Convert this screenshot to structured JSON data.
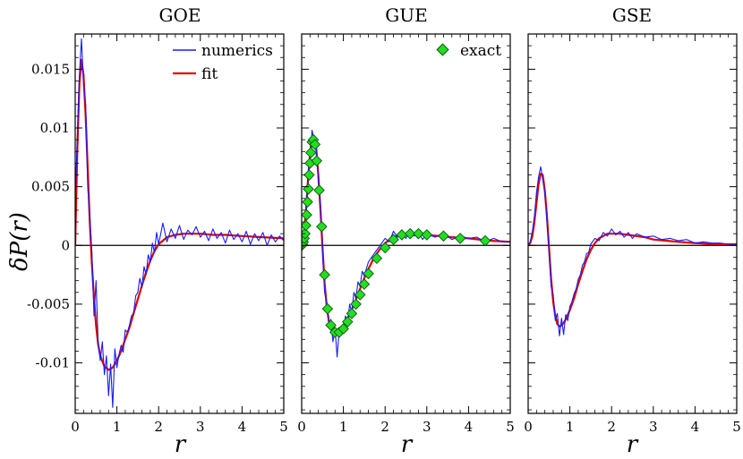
{
  "ylabel": "δP(r)",
  "colors": {
    "numerics": "#1a1aff",
    "fit": "#e00000",
    "exact_fill": "#22dd22",
    "exact_stroke": "#0a5a0a",
    "zero_line": "#000000"
  },
  "legend": {
    "numerics": "numerics",
    "fit": "fit",
    "exact": "exact"
  },
  "chart_data": [
    {
      "type": "line",
      "title": "GOE",
      "xlabel": "r",
      "xlim": [
        0,
        5
      ],
      "ylim": [
        -0.0143,
        0.018
      ],
      "xticks": [
        0,
        1,
        2,
        3,
        4,
        5
      ],
      "xtick_labels": [
        "0",
        "1",
        "2",
        "3",
        "4",
        "5"
      ],
      "yticks": [
        -0.01,
        -0.005,
        0,
        0.005,
        0.01,
        0.015
      ],
      "ytick_labels": [
        "-0.01",
        "-0.005",
        "0",
        "0.005",
        "0.01",
        "0.015"
      ],
      "series": [
        {
          "name": "fit",
          "x": [
            0,
            0.05,
            0.1,
            0.15,
            0.2,
            0.25,
            0.3,
            0.35,
            0.4,
            0.45,
            0.5,
            0.55,
            0.6,
            0.7,
            0.8,
            0.9,
            1.0,
            1.1,
            1.2,
            1.3,
            1.4,
            1.5,
            1.6,
            1.7,
            1.8,
            1.9,
            2.0,
            2.2,
            2.4,
            2.6,
            2.8,
            3.0,
            3.3,
            3.6,
            4.0,
            4.5,
            5.0
          ],
          "y": [
            0,
            0.008,
            0.0138,
            0.0158,
            0.0145,
            0.011,
            0.0065,
            0.002,
            -0.0015,
            -0.0045,
            -0.0068,
            -0.0084,
            -0.0094,
            -0.0103,
            -0.0106,
            -0.0104,
            -0.0098,
            -0.009,
            -0.008,
            -0.007,
            -0.0058,
            -0.0046,
            -0.0034,
            -0.0023,
            -0.0013,
            -0.0005,
            0.0001,
            0.0007,
            0.0009,
            0.001,
            0.001,
            0.001,
            0.0009,
            0.0009,
            0.0008,
            0.0007,
            0.0006
          ]
        },
        {
          "name": "numerics",
          "x": [
            0,
            0.05,
            0.1,
            0.15,
            0.2,
            0.25,
            0.3,
            0.35,
            0.4,
            0.45,
            0.5,
            0.55,
            0.6,
            0.65,
            0.7,
            0.75,
            0.8,
            0.85,
            0.9,
            0.95,
            1.0,
            1.05,
            1.1,
            1.15,
            1.2,
            1.25,
            1.3,
            1.35,
            1.4,
            1.45,
            1.5,
            1.55,
            1.6,
            1.65,
            1.7,
            1.75,
            1.8,
            1.85,
            1.9,
            1.95,
            2.0,
            2.1,
            2.2,
            2.3,
            2.4,
            2.5,
            2.6,
            2.7,
            2.8,
            2.9,
            3.0,
            3.1,
            3.2,
            3.3,
            3.4,
            3.5,
            3.6,
            3.7,
            3.8,
            3.9,
            4.0,
            4.1,
            4.2,
            4.3,
            4.4,
            4.5,
            4.6,
            4.7,
            4.8,
            4.9,
            5.0
          ],
          "y": [
            0.004,
            0.009,
            0.0145,
            0.0176,
            0.0138,
            0.012,
            0.005,
            0.0025,
            -0.0005,
            -0.006,
            -0.003,
            -0.0082,
            -0.0098,
            -0.0082,
            -0.011,
            -0.0094,
            -0.0128,
            -0.0101,
            -0.0138,
            -0.0088,
            -0.0104,
            -0.0093,
            -0.0085,
            -0.0091,
            -0.0072,
            -0.0074,
            -0.0068,
            -0.006,
            -0.0058,
            -0.0043,
            -0.004,
            -0.0028,
            -0.0036,
            -0.0018,
            -0.0025,
            -0.0008,
            -0.0014,
            0.0002,
            -0.0006,
            0.0011,
            0.0001,
            0.0019,
            0.0003,
            0.0014,
            0.0006,
            0.0017,
            0.0005,
            0.0013,
            0.0009,
            0.0016,
            0.0007,
            0.0012,
            0.0004,
            0.0014,
            0.0006,
            0.0011,
            0.0002,
            0.0013,
            0.0005,
            0.001,
            0.0003,
            0.0012,
            0.0001,
            0.001,
            0.0004,
            0.0011,
            0.0,
            0.0009,
            0.0003,
            0.0008,
            0.0004
          ]
        }
      ]
    },
    {
      "type": "line",
      "title": "GUE",
      "xlabel": "r",
      "xlim": [
        0,
        5
      ],
      "ylim": [
        -0.0143,
        0.018
      ],
      "xticks": [
        0,
        1,
        2,
        3,
        4,
        5
      ],
      "xtick_labels": [
        "0",
        "1",
        "2",
        "3",
        "4",
        "5"
      ],
      "series": [
        {
          "name": "fit",
          "x": [
            0,
            0.05,
            0.1,
            0.15,
            0.2,
            0.25,
            0.3,
            0.35,
            0.4,
            0.45,
            0.5,
            0.55,
            0.6,
            0.65,
            0.7,
            0.75,
            0.8,
            0.85,
            0.9,
            1.0,
            1.1,
            1.2,
            1.3,
            1.4,
            1.5,
            1.6,
            1.7,
            1.8,
            1.9,
            2.0,
            2.2,
            2.4,
            2.6,
            2.8,
            3.0,
            3.3,
            3.6,
            4.0,
            4.5,
            5.0
          ],
          "y": [
            0,
            0.0008,
            0.0028,
            0.0055,
            0.0078,
            0.0092,
            0.0093,
            0.0082,
            0.006,
            0.003,
            -0.0002,
            -0.0032,
            -0.0052,
            -0.0064,
            -0.007,
            -0.0073,
            -0.0074,
            -0.0074,
            -0.0073,
            -0.0068,
            -0.0062,
            -0.0055,
            -0.0046,
            -0.0037,
            -0.0028,
            -0.002,
            -0.0013,
            -0.0007,
            -0.0002,
            0.0002,
            0.0007,
            0.0009,
            0.001,
            0.001,
            0.0009,
            0.0008,
            0.0007,
            0.0006,
            0.0004,
            0.0003
          ]
        },
        {
          "name": "numerics",
          "x": [
            0,
            0.05,
            0.1,
            0.15,
            0.2,
            0.25,
            0.3,
            0.35,
            0.4,
            0.45,
            0.5,
            0.55,
            0.6,
            0.65,
            0.7,
            0.75,
            0.8,
            0.85,
            0.9,
            0.95,
            1.0,
            1.05,
            1.1,
            1.15,
            1.2,
            1.25,
            1.3,
            1.35,
            1.4,
            1.45,
            1.5,
            1.6,
            1.7,
            1.8,
            1.9,
            2.0,
            2.1,
            2.2,
            2.3,
            2.4,
            2.5,
            2.6,
            2.7,
            2.8,
            2.9,
            3.0,
            3.2,
            3.4,
            3.6,
            3.8,
            4.0,
            4.2,
            4.4,
            4.6,
            4.8,
            5.0
          ],
          "y": [
            0,
            0.001,
            0.0022,
            0.006,
            0.0075,
            0.0098,
            0.0089,
            0.0085,
            0.0055,
            0.0036,
            -0.0005,
            -0.004,
            -0.0048,
            -0.0068,
            -0.0063,
            -0.0082,
            -0.0071,
            -0.0095,
            -0.0072,
            -0.0069,
            -0.0075,
            -0.006,
            -0.0066,
            -0.005,
            -0.0057,
            -0.004,
            -0.0045,
            -0.0031,
            -0.0035,
            -0.0022,
            -0.0026,
            -0.0014,
            -0.0009,
            -0.0004,
            0.0001,
            0.0006,
            0.0003,
            0.0012,
            0.0007,
            0.0011,
            0.0006,
            0.0013,
            0.0008,
            0.0011,
            0.0005,
            0.001,
            0.0007,
            0.0011,
            0.0005,
            0.0008,
            0.0006,
            0.0007,
            0.0003,
            0.0006,
            0.0003,
            0.0003
          ]
        },
        {
          "name": "exact",
          "type": "scatter",
          "x": [
            0.0,
            0.02,
            0.04,
            0.06,
            0.08,
            0.1,
            0.12,
            0.14,
            0.16,
            0.18,
            0.2,
            0.22,
            0.25,
            0.28,
            0.32,
            0.36,
            0.42,
            0.48,
            0.55,
            0.62,
            0.7,
            0.8,
            0.9,
            1.0,
            1.1,
            1.2,
            1.3,
            1.4,
            1.5,
            1.6,
            1.8,
            2.0,
            2.2,
            2.4,
            2.6,
            2.8,
            3.0,
            3.4,
            3.8,
            4.4
          ],
          "y": [
            0.0,
            0.0001,
            0.0003,
            0.0006,
            0.001,
            0.0017,
            0.0026,
            0.0037,
            0.0048,
            0.006,
            0.007,
            0.0079,
            0.0088,
            0.009,
            0.0086,
            0.0072,
            0.0047,
            0.0016,
            -0.0025,
            -0.0054,
            -0.0068,
            -0.0074,
            -0.0074,
            -0.0071,
            -0.0065,
            -0.0058,
            -0.005,
            -0.0042,
            -0.0033,
            -0.0024,
            -0.0011,
            -0.0002,
            0.0005,
            0.0009,
            0.001,
            0.001,
            0.0009,
            0.0008,
            0.0006,
            0.0004
          ]
        }
      ]
    },
    {
      "type": "line",
      "title": "GSE",
      "xlabel": "r",
      "xlim": [
        0,
        5
      ],
      "ylim": [
        -0.0143,
        0.018
      ],
      "xticks": [
        0,
        1,
        2,
        3,
        4,
        5
      ],
      "xtick_labels": [
        "0",
        "1",
        "2",
        "3",
        "4",
        "5"
      ],
      "series": [
        {
          "name": "fit",
          "x": [
            0,
            0.05,
            0.1,
            0.15,
            0.2,
            0.25,
            0.3,
            0.35,
            0.4,
            0.45,
            0.5,
            0.55,
            0.6,
            0.65,
            0.7,
            0.75,
            0.8,
            0.85,
            0.9,
            1.0,
            1.1,
            1.2,
            1.3,
            1.4,
            1.5,
            1.6,
            1.7,
            1.8,
            1.9,
            2.0,
            2.2,
            2.4,
            2.6,
            2.8,
            3.0,
            3.3,
            3.6,
            4.0,
            4.5,
            5.0
          ],
          "y": [
            0,
            0.0002,
            0.0008,
            0.002,
            0.0036,
            0.0052,
            0.0061,
            0.006,
            0.0047,
            0.0025,
            -0.0002,
            -0.0028,
            -0.0048,
            -0.006,
            -0.0067,
            -0.0069,
            -0.0068,
            -0.0066,
            -0.0063,
            -0.0055,
            -0.0045,
            -0.0033,
            -0.0022,
            -0.0012,
            -0.0004,
            0.0002,
            0.0006,
            0.0008,
            0.001,
            0.001,
            0.001,
            0.0009,
            0.0008,
            0.0007,
            0.0005,
            0.0004,
            0.0003,
            0.0002,
            0.0001,
            0.0001
          ]
        },
        {
          "name": "numerics",
          "x": [
            0,
            0.05,
            0.1,
            0.15,
            0.2,
            0.25,
            0.3,
            0.35,
            0.4,
            0.45,
            0.5,
            0.55,
            0.6,
            0.65,
            0.7,
            0.75,
            0.8,
            0.85,
            0.9,
            0.95,
            1.0,
            1.05,
            1.1,
            1.15,
            1.2,
            1.25,
            1.3,
            1.35,
            1.4,
            1.45,
            1.5,
            1.6,
            1.7,
            1.8,
            1.9,
            2.0,
            2.1,
            2.2,
            2.3,
            2.4,
            2.5,
            2.6,
            2.8,
            3.0,
            3.2,
            3.4,
            3.6,
            3.8,
            4.0,
            4.2,
            4.4,
            4.6,
            4.8,
            5.0
          ],
          "y": [
            0,
            0.0003,
            0.0012,
            0.0025,
            0.0045,
            0.0058,
            0.0067,
            0.0056,
            0.0045,
            0.002,
            -0.0003,
            -0.0035,
            -0.0042,
            -0.0064,
            -0.0058,
            -0.0077,
            -0.0062,
            -0.0076,
            -0.0059,
            -0.0064,
            -0.0052,
            -0.0048,
            -0.0041,
            -0.0037,
            -0.0029,
            -0.0025,
            -0.0017,
            -0.0014,
            -0.0007,
            -0.0006,
            0.0001,
            0.0006,
            0.0004,
            0.0011,
            0.0008,
            0.0014,
            0.0009,
            0.0012,
            0.0007,
            0.0011,
            0.0006,
            0.001,
            0.0007,
            0.0008,
            0.0005,
            0.0006,
            0.0004,
            0.0005,
            0.0002,
            0.0003,
            0.0002,
            0.0002,
            0.0001,
            0.0001
          ]
        }
      ]
    }
  ]
}
